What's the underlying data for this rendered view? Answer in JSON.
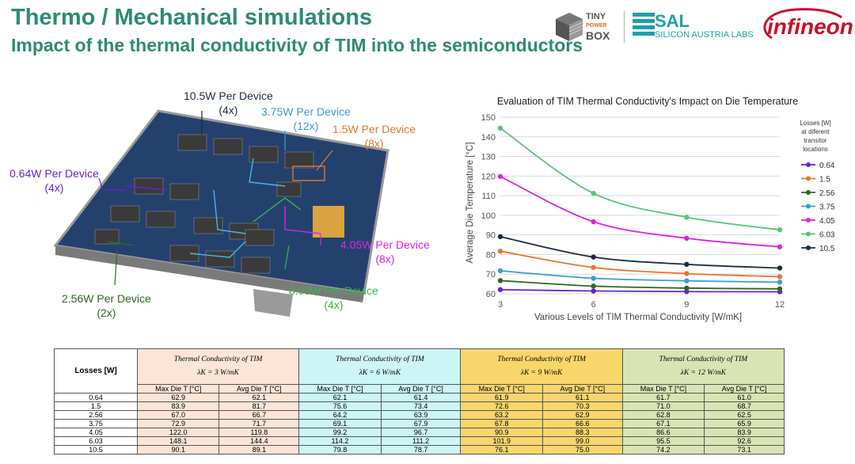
{
  "header": {
    "title": "Thermo / Mechanical simulations",
    "subtitle": "Impact of the thermal conductivity of TIM into the semiconductors"
  },
  "logos": {
    "tiny_power_box": {
      "line1": "TINY",
      "line2": "POWER",
      "line3": "BOX"
    },
    "sal": {
      "abbr": "SAL",
      "full": "SILICON AUSTRIA LABS"
    },
    "infineon": {
      "name": "infineon"
    }
  },
  "pcb_callouts": [
    {
      "line1": "10.5W Per Device",
      "line2": "(4x)",
      "color": "#1b2a4a"
    },
    {
      "line1": "3.75W Per Device",
      "line2": "(12x)",
      "color": "#3a9bd8"
    },
    {
      "line1": "1.5W Per Device",
      "line2": "(8x)",
      "color": "#e8772e"
    },
    {
      "line1": "0.64W Per Device",
      "line2": "(4x)",
      "color": "#6a1fd6"
    },
    {
      "line1": "4.05W Per Device",
      "line2": "(8x)",
      "color": "#e020e0"
    },
    {
      "line1": "6.03W Per Device",
      "line2": "(4x)",
      "color": "#3ab54a"
    },
    {
      "line1": "2.56W Per Device",
      "line2": "(2x)",
      "color": "#2b6a1f"
    }
  ],
  "chart_data": {
    "type": "line",
    "title": "Evaluation of TIM Thermal Conductivity's Impact on Die Temperature",
    "xlabel": "Various Levels of TIM Thermal Conductivity [W/mK]",
    "ylabel": "Average Die Temperature [°C]",
    "x": [
      3,
      6,
      9,
      12
    ],
    "x_ticks": [
      "3",
      "6",
      "9",
      "12"
    ],
    "ylim": [
      60,
      150
    ],
    "y_ticks": [
      "60",
      "70",
      "80",
      "90",
      "100",
      "110",
      "120",
      "130",
      "140",
      "150"
    ],
    "legend_title": [
      "Losses [W]",
      "at diferent",
      "transitor",
      "locations"
    ],
    "legend_position": "right",
    "series": [
      {
        "name": "0.64",
        "color": "#6a1fd6",
        "values": [
          62.1,
          61.4,
          61.1,
          61.0
        ]
      },
      {
        "name": "1.5",
        "color": "#e8772e",
        "values": [
          81.7,
          73.4,
          70.3,
          68.7
        ]
      },
      {
        "name": "2.56",
        "color": "#2b6a1f",
        "values": [
          66.7,
          63.9,
          62.9,
          62.5
        ]
      },
      {
        "name": "3.75",
        "color": "#3a9bd8",
        "values": [
          71.7,
          67.9,
          66.6,
          65.9
        ]
      },
      {
        "name": "4.05",
        "color": "#e020e0",
        "values": [
          119.8,
          96.7,
          88.3,
          83.9
        ]
      },
      {
        "name": "6.03",
        "color": "#55c870",
        "values": [
          144.4,
          111.2,
          99.0,
          92.6
        ]
      },
      {
        "name": "10.5",
        "color": "#1b2a4a",
        "values": [
          89.1,
          78.7,
          75.0,
          73.1
        ]
      }
    ]
  },
  "table": {
    "losses_header": "Losses [W]",
    "group_title": "Thermal Conductivity of TIM",
    "groups": [
      {
        "lambda": "λK = 3 W/mK"
      },
      {
        "lambda": "λK = 6 W/mK"
      },
      {
        "lambda": "λK = 9 W/mK"
      },
      {
        "lambda": "λK = 12 W/mK"
      }
    ],
    "sub_headers": [
      "Max Die T [°C]",
      "Avg Die T [°C]"
    ],
    "rows": [
      {
        "loss": "0.64",
        "values": [
          "62.9",
          "62.1",
          "62.1",
          "61.4",
          "61.9",
          "61.1",
          "61.7",
          "61.0"
        ]
      },
      {
        "loss": "1.5",
        "values": [
          "83.9",
          "81.7",
          "75.6",
          "73.4",
          "72.6",
          "70.3",
          "71.0",
          "68.7"
        ]
      },
      {
        "loss": "2.56",
        "values": [
          "67.0",
          "66.7",
          "64.2",
          "63.9",
          "63.2",
          "62.9",
          "62.8",
          "62.5"
        ]
      },
      {
        "loss": "3.75",
        "values": [
          "72.9",
          "71.7",
          "69.1",
          "67.9",
          "67.8",
          "66.6",
          "67.1",
          "65.9"
        ]
      },
      {
        "loss": "4.05",
        "values": [
          "122.0",
          "119.8",
          "99.2",
          "96.7",
          "90.9",
          "88.3",
          "86.6",
          "83.9"
        ]
      },
      {
        "loss": "6.03",
        "values": [
          "148.1",
          "144.4",
          "114.2",
          "111.2",
          "101.9",
          "99.0",
          "95.5",
          "92.6"
        ]
      },
      {
        "loss": "10.5",
        "values": [
          "90.1",
          "89.1",
          "79.8",
          "78.7",
          "76.1",
          "75.0",
          "74.2",
          "73.1"
        ]
      }
    ]
  }
}
